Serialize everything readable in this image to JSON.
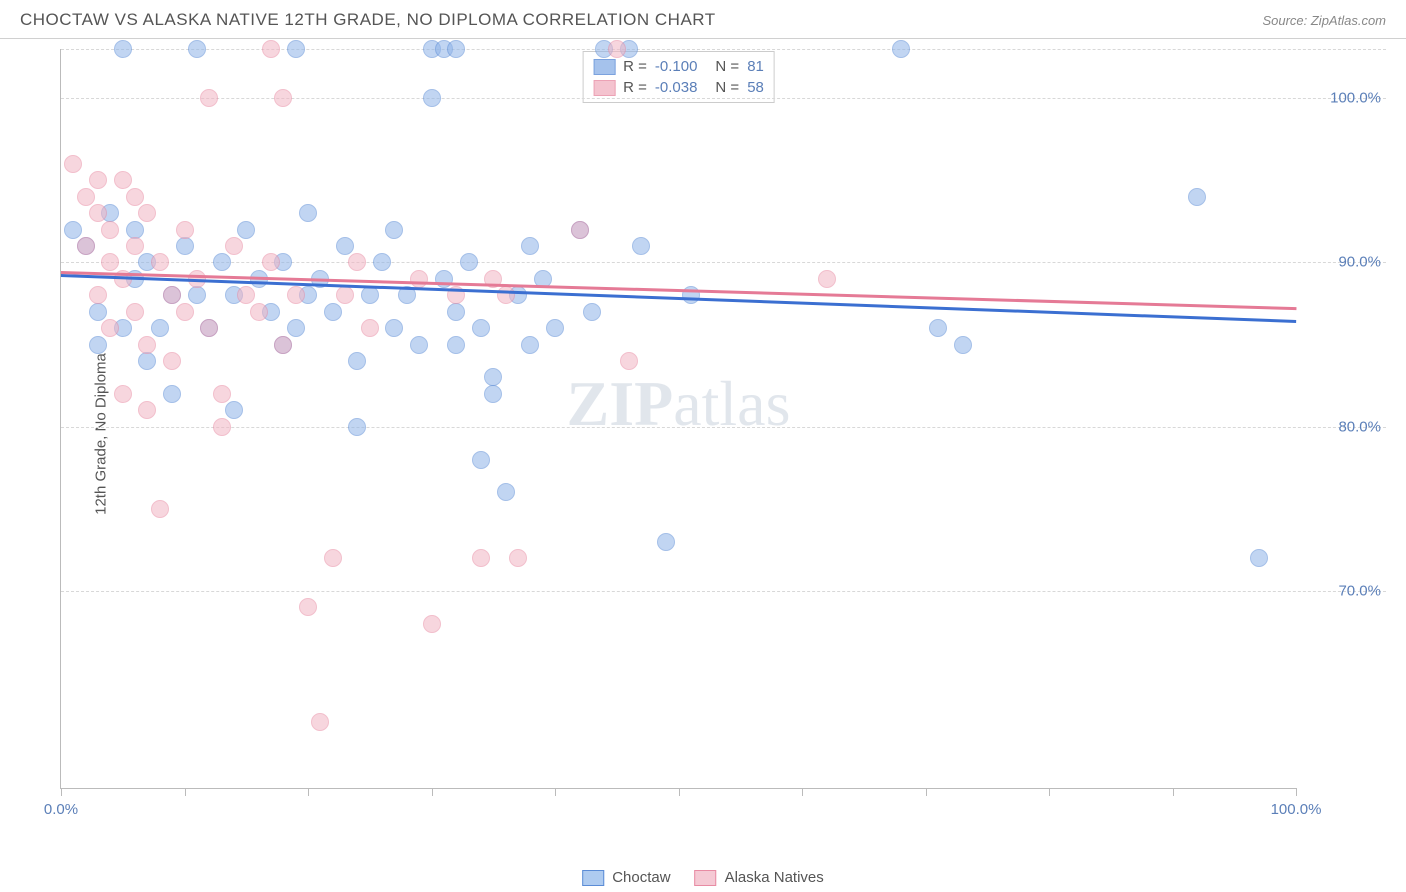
{
  "header": {
    "title": "CHOCTAW VS ALASKA NATIVE 12TH GRADE, NO DIPLOMA CORRELATION CHART",
    "source": "Source: ZipAtlas.com"
  },
  "chart": {
    "type": "scatter",
    "y_axis_label": "12th Grade, No Diploma",
    "xlim": [
      0,
      100
    ],
    "ylim": [
      58,
      103
    ],
    "x_ticks": [
      0,
      10,
      20,
      30,
      40,
      50,
      60,
      70,
      80,
      90,
      100
    ],
    "x_tick_labels": {
      "0": "0.0%",
      "100": "100.0%"
    },
    "y_grid": [
      70,
      80,
      90,
      100,
      103
    ],
    "y_tick_labels": {
      "70": "70.0%",
      "80": "80.0%",
      "90": "90.0%",
      "100": "100.0%"
    },
    "background_color": "#ffffff",
    "grid_color": "#d8d8d8",
    "axis_color": "#bbbbbb",
    "tick_label_color": "#5b7fb8",
    "marker_radius": 9,
    "marker_opacity": 0.55,
    "watermark": "ZIPatlas",
    "series": [
      {
        "name": "Choctaw",
        "color": "#8fb4e8",
        "border_color": "#5b8cd6",
        "trend_color": "#3b6fd1",
        "trend": {
          "x1": 0,
          "y1": 89.3,
          "x2": 100,
          "y2": 86.5
        },
        "stats": {
          "R": "-0.100",
          "N": "81"
        },
        "points": [
          [
            1,
            92
          ],
          [
            2,
            91
          ],
          [
            3,
            87
          ],
          [
            3,
            85
          ],
          [
            4,
            93
          ],
          [
            5,
            103
          ],
          [
            5,
            86
          ],
          [
            6,
            92
          ],
          [
            6,
            89
          ],
          [
            7,
            90
          ],
          [
            7,
            84
          ],
          [
            8,
            86
          ],
          [
            9,
            88
          ],
          [
            9,
            82
          ],
          [
            10,
            91
          ],
          [
            11,
            103
          ],
          [
            11,
            88
          ],
          [
            12,
            86
          ],
          [
            13,
            90
          ],
          [
            14,
            88
          ],
          [
            14,
            81
          ],
          [
            15,
            92
          ],
          [
            16,
            89
          ],
          [
            17,
            87
          ],
          [
            18,
            90
          ],
          [
            18,
            85
          ],
          [
            19,
            103
          ],
          [
            19,
            86
          ],
          [
            20,
            93
          ],
          [
            20,
            88
          ],
          [
            21,
            89
          ],
          [
            22,
            87
          ],
          [
            23,
            91
          ],
          [
            24,
            84
          ],
          [
            24,
            80
          ],
          [
            25,
            88
          ],
          [
            26,
            90
          ],
          [
            27,
            86
          ],
          [
            27,
            92
          ],
          [
            28,
            88
          ],
          [
            29,
            85
          ],
          [
            30,
            103
          ],
          [
            30,
            100
          ],
          [
            31,
            103
          ],
          [
            31,
            89
          ],
          [
            32,
            103
          ],
          [
            32,
            87
          ],
          [
            32,
            85
          ],
          [
            33,
            90
          ],
          [
            34,
            86
          ],
          [
            34,
            78
          ],
          [
            35,
            82
          ],
          [
            35,
            83
          ],
          [
            36,
            76
          ],
          [
            37,
            88
          ],
          [
            38,
            91
          ],
          [
            38,
            85
          ],
          [
            39,
            89
          ],
          [
            40,
            86
          ],
          [
            42,
            92
          ],
          [
            43,
            87
          ],
          [
            44,
            103
          ],
          [
            46,
            103
          ],
          [
            47,
            91
          ],
          [
            49,
            73
          ],
          [
            51,
            88
          ],
          [
            68,
            103
          ],
          [
            71,
            86
          ],
          [
            73,
            85
          ],
          [
            92,
            94
          ],
          [
            97,
            72
          ]
        ]
      },
      {
        "name": "Alaska Natives",
        "color": "#f2b5c4",
        "border_color": "#e88ba3",
        "trend_color": "#e57a96",
        "trend": {
          "x1": 0,
          "y1": 89.5,
          "x2": 100,
          "y2": 87.3
        },
        "stats": {
          "R": "-0.038",
          "N": "58"
        },
        "points": [
          [
            1,
            96
          ],
          [
            2,
            94
          ],
          [
            2,
            91
          ],
          [
            3,
            95
          ],
          [
            3,
            93
          ],
          [
            3,
            88
          ],
          [
            4,
            92
          ],
          [
            4,
            90
          ],
          [
            4,
            86
          ],
          [
            5,
            95
          ],
          [
            5,
            89
          ],
          [
            5,
            82
          ],
          [
            6,
            94
          ],
          [
            6,
            91
          ],
          [
            6,
            87
          ],
          [
            7,
            93
          ],
          [
            7,
            85
          ],
          [
            7,
            81
          ],
          [
            8,
            90
          ],
          [
            8,
            75
          ],
          [
            9,
            88
          ],
          [
            9,
            84
          ],
          [
            10,
            92
          ],
          [
            10,
            87
          ],
          [
            11,
            89
          ],
          [
            12,
            100
          ],
          [
            12,
            86
          ],
          [
            13,
            82
          ],
          [
            13,
            80
          ],
          [
            14,
            91
          ],
          [
            15,
            88
          ],
          [
            16,
            87
          ],
          [
            17,
            103
          ],
          [
            17,
            90
          ],
          [
            18,
            100
          ],
          [
            18,
            85
          ],
          [
            19,
            88
          ],
          [
            20,
            69
          ],
          [
            21,
            62
          ],
          [
            22,
            72
          ],
          [
            23,
            88
          ],
          [
            24,
            90
          ],
          [
            25,
            86
          ],
          [
            29,
            89
          ],
          [
            30,
            68
          ],
          [
            32,
            88
          ],
          [
            34,
            72
          ],
          [
            35,
            89
          ],
          [
            36,
            88
          ],
          [
            37,
            72
          ],
          [
            42,
            92
          ],
          [
            45,
            103
          ],
          [
            46,
            84
          ],
          [
            62,
            89
          ]
        ]
      }
    ]
  },
  "legend": {
    "items": [
      {
        "label": "Choctaw",
        "fill": "#aecbf0",
        "border": "#5b8cd6"
      },
      {
        "label": "Alaska Natives",
        "fill": "#f5c9d4",
        "border": "#e88ba3"
      }
    ]
  }
}
